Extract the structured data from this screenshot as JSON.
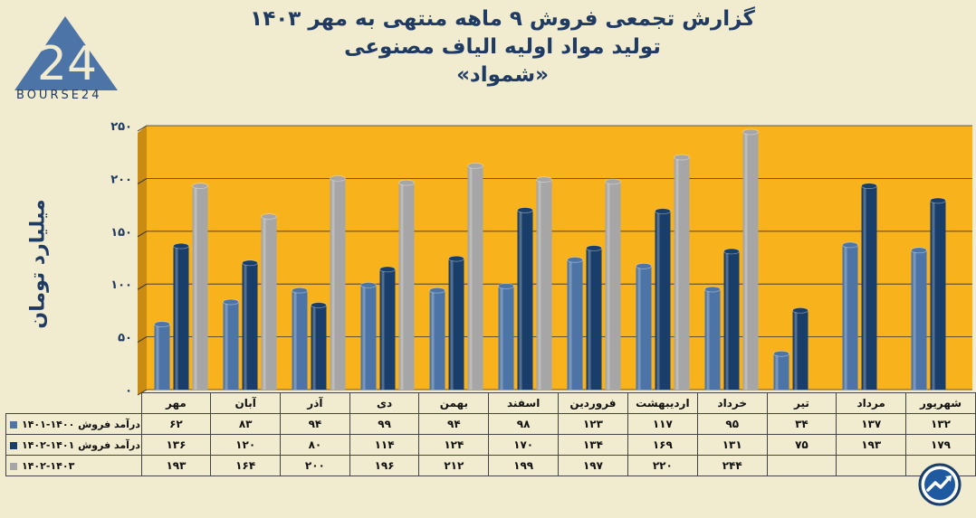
{
  "title_lines": [
    "گزارش تجمعی فروش ۹ ماهه منتهی به مهر ۱۴۰۳",
    "تولید مواد اولیه الیاف مصنوعی",
    "«شمواد»"
  ],
  "logo": {
    "text": "BOURSE24",
    "mark": "24"
  },
  "badge_icon": "trend-arrow-icon",
  "colors": {
    "plot_bg": "#f8b21c",
    "background": "#f1ebcf",
    "series": [
      "#4d74a6",
      "#1a3e6a",
      "#a6a6a6"
    ],
    "title": "#1f3b63"
  },
  "chart_data": {
    "type": "bar",
    "categories": [
      "مهر",
      "آبان",
      "آذر",
      "دی",
      "بهمن",
      "اسفند",
      "فروردین",
      "اردیبهشت",
      "خرداد",
      "تیر",
      "مرداد",
      "شهریور"
    ],
    "category_labels": [
      "مهر",
      "آبان",
      "آذر",
      "دی",
      "بهمن",
      "اسفند",
      "فروردین",
      "اردیبهشت",
      "خرداد",
      "تیر",
      "مرداد",
      "شهریور"
    ],
    "series": [
      {
        "name": "درآمد فروش ۱۴۰۰-۱۴۰۱",
        "values": [
          62,
          83,
          94,
          99,
          94,
          98,
          123,
          117,
          95,
          34,
          137,
          132
        ],
        "labels": [
          "۶۲",
          "۸۳",
          "۹۴",
          "۹۹",
          "۹۴",
          "۹۸",
          "۱۲۳",
          "۱۱۷",
          "۹۵",
          "۳۴",
          "۱۳۷",
          "۱۳۲"
        ]
      },
      {
        "name": "درآمد فروش ۱۴۰۱-۱۴۰۲",
        "values": [
          136,
          120,
          80,
          114,
          124,
          170,
          134,
          169,
          131,
          75,
          193,
          179
        ],
        "labels": [
          "۱۳۶",
          "۱۲۰",
          "۸۰",
          "۱۱۴",
          "۱۲۴",
          "۱۷۰",
          "۱۳۴",
          "۱۶۹",
          "۱۳۱",
          "۷۵",
          "۱۹۳",
          "۱۷۹"
        ]
      },
      {
        "name": "۱۴۰۲-۱۴۰۳",
        "values": [
          193,
          164,
          200,
          196,
          212,
          199,
          197,
          220,
          244,
          null,
          null,
          null
        ],
        "labels": [
          "۱۹۳",
          "۱۶۴",
          "۲۰۰",
          "۱۹۶",
          "۲۱۲",
          "۱۹۹",
          "۱۹۷",
          "۲۲۰",
          "۲۴۴",
          "",
          "",
          ""
        ]
      }
    ],
    "ylabel": "میلیارد تومان",
    "ylim": [
      0,
      250
    ],
    "yticks": [
      0,
      50,
      100,
      150,
      200,
      250
    ],
    "ytick_labels": [
      "۰",
      "۵۰",
      "۱۰۰",
      "۱۵۰",
      "۲۰۰",
      "۲۵۰"
    ],
    "grid": true,
    "legend": "table-below"
  }
}
